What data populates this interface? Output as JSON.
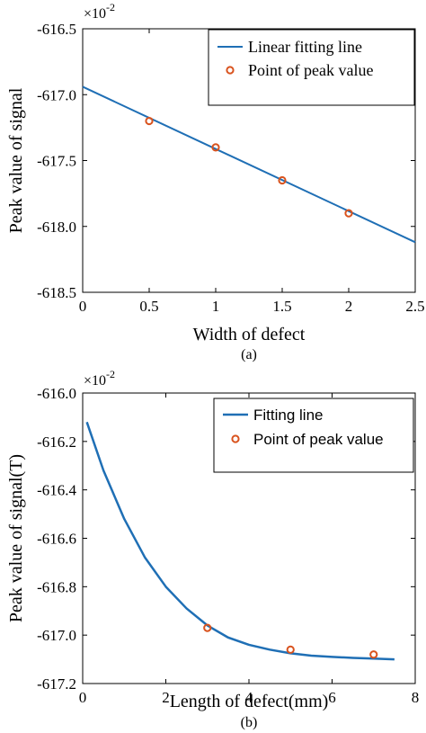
{
  "chart_data": [
    {
      "type": "line",
      "panel_label": "(a)",
      "xlabel": "Width of defect",
      "ylabel": "Peak value of signal",
      "xlim": [
        0,
        2.5
      ],
      "ylim": [
        -618.5,
        -616.5
      ],
      "xticks": [
        "0",
        "0.5",
        "1",
        "1.5",
        "2",
        "2.5"
      ],
      "yticks": [
        "-616.5",
        "-617.0",
        "-617.5",
        "-618.0",
        "-618.5"
      ],
      "y_multiplier": {
        "base": "×10",
        "exponent": "-2"
      },
      "legend_position": "top-right",
      "series": [
        {
          "name": "Linear fitting line",
          "kind": "line",
          "color": "#1f6fb5",
          "x": [
            0,
            2.5
          ],
          "y": [
            -616.94,
            -618.12
          ]
        },
        {
          "name": "Point of peak value",
          "kind": "scatter",
          "color": "#d9531e",
          "x": [
            0.5,
            1.0,
            1.5,
            2.0
          ],
          "y": [
            -617.2,
            -617.4,
            -617.65,
            -617.9
          ]
        }
      ]
    },
    {
      "type": "line",
      "panel_label": "(b)",
      "xlabel": "Length of defect(mm)",
      "ylabel": "Peak value of signal(T)",
      "xlim": [
        0,
        8
      ],
      "ylim": [
        -617.2,
        -616.0
      ],
      "xticks": [
        "0",
        "2",
        "4",
        "6",
        "8"
      ],
      "yticks": [
        "-616.0",
        "-616.2",
        "-616.4",
        "-616.6",
        "-616.8",
        "-617.0",
        "-617.2"
      ],
      "y_multiplier": {
        "base": "×10",
        "exponent": "-2"
      },
      "legend_position": "top-right",
      "series": [
        {
          "name": "Fitting line",
          "kind": "line",
          "color": "#1f6fb5",
          "x": [
            0.1,
            0.5,
            1.0,
            1.5,
            2.0,
            2.5,
            3.0,
            3.5,
            4.0,
            4.5,
            5.0,
            5.5,
            6.0,
            6.5,
            7.0,
            7.5
          ],
          "y": [
            -616.12,
            -616.32,
            -616.52,
            -616.68,
            -616.8,
            -616.89,
            -616.96,
            -617.01,
            -617.04,
            -617.06,
            -617.075,
            -617.085,
            -617.09,
            -617.094,
            -617.097,
            -617.1
          ]
        },
        {
          "name": "Point of peak value",
          "kind": "scatter",
          "color": "#d9531e",
          "x": [
            3,
            5,
            7
          ],
          "y": [
            -616.97,
            -617.06,
            -617.08
          ]
        }
      ]
    }
  ]
}
